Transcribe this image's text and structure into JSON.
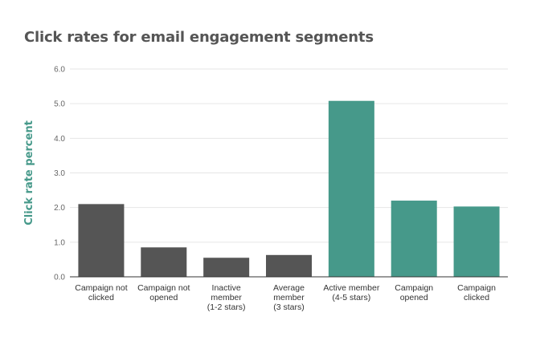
{
  "chart_data": {
    "type": "bar",
    "title": "Click rates for email engagement segments",
    "xlabel": "",
    "ylabel": "Click rate percent",
    "ylim": [
      0,
      6
    ],
    "yticks": [
      "0.0",
      "1.0",
      "2.0",
      "3.0",
      "4.0",
      "5.0",
      "6.0"
    ],
    "grid": true,
    "categories": [
      [
        "Campaign not",
        "clicked"
      ],
      [
        "Campaign not",
        "opened"
      ],
      [
        "Inactive",
        "member",
        "(1-2 stars)"
      ],
      [
        "Average",
        "member",
        "(3 stars)"
      ],
      [
        "Active member",
        "(4-5 stars)"
      ],
      [
        "Campaign",
        "opened"
      ],
      [
        "Campaign",
        "clicked"
      ]
    ],
    "values": [
      2.1,
      0.85,
      0.55,
      0.63,
      5.08,
      2.2,
      2.03
    ],
    "bar_colors": [
      "#555555",
      "#555555",
      "#555555",
      "#555555",
      "#46998a",
      "#46998a",
      "#46998a"
    ],
    "ylabel_color": "#46998a",
    "grid_color": "#e6e6e6",
    "axis_color": "#333333"
  }
}
